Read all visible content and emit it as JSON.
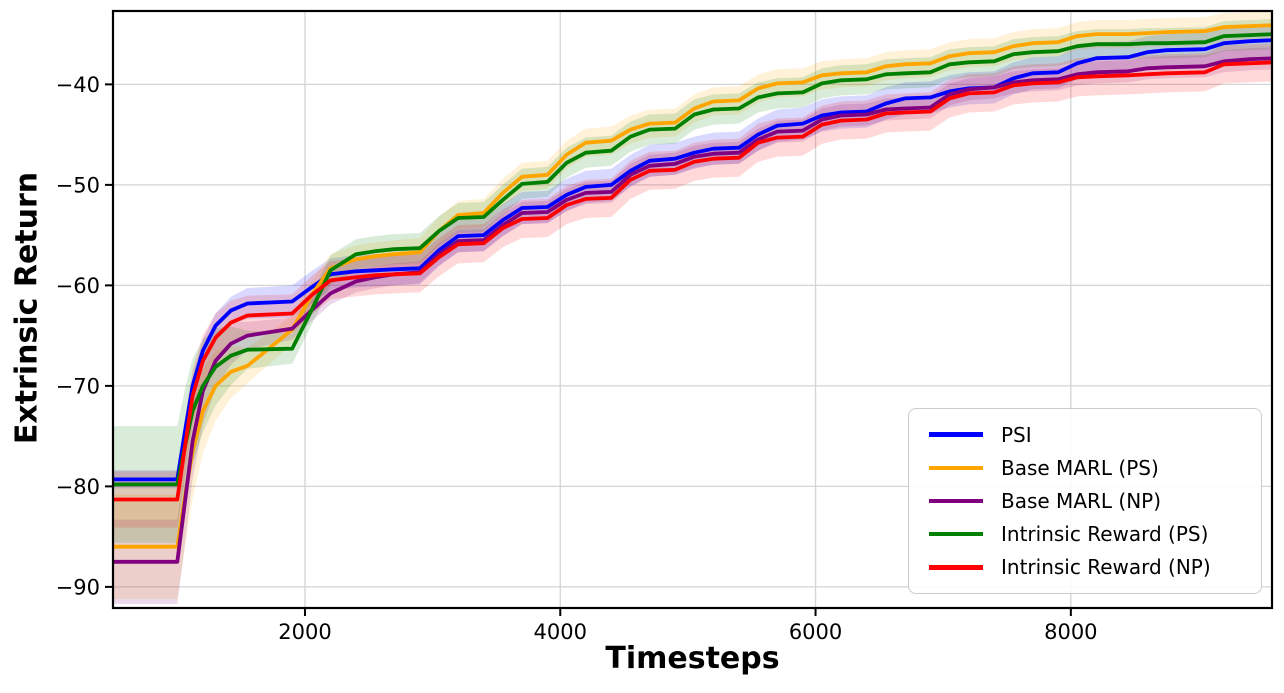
{
  "chart_data": {
    "type": "line",
    "title": "",
    "xlabel": "Timesteps",
    "ylabel": "Extrinsic Return",
    "xlim": [
      496,
      9576
    ],
    "ylim": [
      -92.1,
      -32.7
    ],
    "x_ticks": [
      2000,
      4000,
      6000,
      8000
    ],
    "y_ticks": [
      -40,
      -50,
      -60,
      -70,
      -80,
      -90
    ],
    "grid": true,
    "legend_position": "lower right",
    "x": [
      500,
      1000,
      1060,
      1120,
      1200,
      1300,
      1420,
      1550,
      1900,
      2050,
      2200,
      2400,
      2550,
      2700,
      2900,
      3050,
      3200,
      3400,
      3550,
      3700,
      3900,
      4050,
      4200,
      4400,
      4550,
      4700,
      4900,
      5050,
      5200,
      5400,
      5550,
      5700,
      5900,
      6050,
      6200,
      6400,
      6550,
      6700,
      6900,
      7050,
      7200,
      7400,
      7550,
      7700,
      7900,
      8050,
      8200,
      8450,
      8600,
      8750,
      9050,
      9200,
      9400,
      9600
    ],
    "series": [
      {
        "name": "PSI",
        "color": "#0000ff",
        "band_halfwidth": {
          "initial": 0.9,
          "later": 1.6
        },
        "values": [
          -79.3,
          -79.3,
          -74.5,
          -70.0,
          -66.5,
          -64.0,
          -62.5,
          -61.8,
          -61.6,
          -60.2,
          -58.9,
          -58.6,
          -58.5,
          -58.4,
          -58.3,
          -56.5,
          -55.1,
          -55.0,
          -53.5,
          -52.3,
          -52.2,
          -51.0,
          -50.2,
          -50.0,
          -48.6,
          -47.6,
          -47.4,
          -46.8,
          -46.4,
          -46.3,
          -45.0,
          -44.1,
          -43.9,
          -43.1,
          -42.8,
          -42.7,
          -41.9,
          -41.4,
          -41.3,
          -40.7,
          -40.4,
          -40.3,
          -39.4,
          -38.9,
          -38.8,
          -37.9,
          -37.4,
          -37.3,
          -36.8,
          -36.6,
          -36.5,
          -35.9,
          -35.7,
          -35.6
        ]
      },
      {
        "name": "Base MARL (PS)",
        "color": "#ffa500",
        "band_halfwidth": {
          "initial": 5.2,
          "later": 1.4
        },
        "values": [
          -86.0,
          -86.0,
          -81.0,
          -76.5,
          -72.5,
          -70.0,
          -68.6,
          -68.0,
          -64.4,
          -61.0,
          -58.3,
          -57.4,
          -57.1,
          -56.9,
          -56.7,
          -54.6,
          -53.0,
          -52.8,
          -50.8,
          -49.2,
          -49.0,
          -47.0,
          -45.8,
          -45.6,
          -44.5,
          -43.9,
          -43.8,
          -42.4,
          -41.7,
          -41.6,
          -40.4,
          -39.9,
          -39.8,
          -39.1,
          -38.9,
          -38.8,
          -38.2,
          -38.0,
          -37.9,
          -37.2,
          -36.9,
          -36.8,
          -36.2,
          -35.9,
          -35.8,
          -35.2,
          -35.0,
          -35.0,
          -34.9,
          -34.8,
          -34.7,
          -34.3,
          -34.2,
          -34.1
        ]
      },
      {
        "name": "Base MARL (NP)",
        "color": "#800080",
        "band_halfwidth": {
          "initial": 4.2,
          "later": 1.1
        },
        "values": [
          -87.5,
          -87.5,
          -81.5,
          -75.5,
          -70.5,
          -67.5,
          -65.8,
          -65.0,
          -64.3,
          -62.5,
          -60.8,
          -59.6,
          -59.2,
          -58.9,
          -58.7,
          -56.9,
          -55.6,
          -55.5,
          -54.0,
          -52.8,
          -52.7,
          -51.5,
          -50.8,
          -50.7,
          -49.0,
          -48.1,
          -47.9,
          -47.2,
          -46.9,
          -46.8,
          -45.5,
          -44.7,
          -44.6,
          -43.5,
          -43.1,
          -43.0,
          -42.5,
          -42.4,
          -42.3,
          -41.0,
          -40.5,
          -40.3,
          -39.8,
          -39.6,
          -39.5,
          -39.0,
          -38.8,
          -38.7,
          -38.4,
          -38.3,
          -38.2,
          -37.7,
          -37.5,
          -37.4
        ]
      },
      {
        "name": "Intrinsic Reward (PS)",
        "color": "#008000",
        "band_halfwidth": {
          "initial": 5.8,
          "later": 1.5
        },
        "values": [
          -79.8,
          -79.8,
          -76.0,
          -72.5,
          -70.0,
          -68.1,
          -67.0,
          -66.4,
          -66.3,
          -62.5,
          -58.5,
          -56.9,
          -56.6,
          -56.4,
          -56.3,
          -54.6,
          -53.3,
          -53.2,
          -51.5,
          -49.9,
          -49.7,
          -47.8,
          -46.8,
          -46.6,
          -45.2,
          -44.5,
          -44.4,
          -43.0,
          -42.5,
          -42.4,
          -41.3,
          -40.9,
          -40.8,
          -39.9,
          -39.6,
          -39.5,
          -39.0,
          -38.9,
          -38.8,
          -38.0,
          -37.8,
          -37.7,
          -37.0,
          -36.8,
          -36.7,
          -36.2,
          -36.0,
          -36.0,
          -35.9,
          -35.9,
          -35.8,
          -35.2,
          -35.1,
          -35.0
        ]
      },
      {
        "name": "Intrinsic Reward (NP)",
        "color": "#ff0000",
        "band_halfwidth": {
          "initial": 2.8,
          "later": 1.9
        },
        "values": [
          -81.3,
          -81.3,
          -76.0,
          -71.0,
          -67.5,
          -65.2,
          -63.7,
          -63.0,
          -62.8,
          -61.0,
          -59.5,
          -59.2,
          -59.0,
          -58.9,
          -58.8,
          -57.2,
          -55.9,
          -55.8,
          -54.3,
          -53.4,
          -53.3,
          -52.0,
          -51.4,
          -51.3,
          -49.5,
          -48.6,
          -48.5,
          -47.7,
          -47.4,
          -47.3,
          -45.8,
          -45.3,
          -45.2,
          -44.0,
          -43.6,
          -43.5,
          -42.9,
          -42.8,
          -42.7,
          -41.4,
          -40.9,
          -40.8,
          -40.1,
          -39.9,
          -39.8,
          -39.3,
          -39.2,
          -39.1,
          -39.0,
          -38.9,
          -38.8,
          -38.0,
          -37.9,
          -37.8
        ]
      }
    ],
    "style": {
      "grid_color": "#d4d4d4",
      "spine_color": "#000000",
      "band_opacity": 0.15
    }
  }
}
